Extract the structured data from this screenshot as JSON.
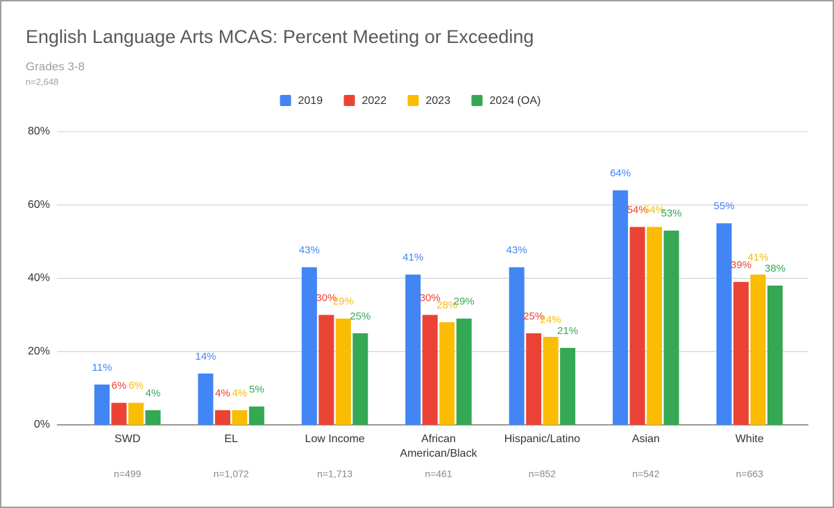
{
  "chart_data": {
    "type": "bar",
    "title": "English Language Arts MCAS: Percent Meeting or Exceeding",
    "subtitle": "Grades 3-8",
    "note": "n=2,648",
    "categories": [
      "SWD",
      "EL",
      "Low Income",
      "African American/Black",
      "Hispanic/Latino",
      "Asian",
      "White"
    ],
    "category_notes": [
      "n=499",
      "n=1,072",
      "n=1,713",
      "n=461",
      "n=852",
      "n=542",
      "n=663"
    ],
    "series": [
      {
        "name": "2019",
        "color": "#4285f4",
        "values": [
          11,
          14,
          43,
          41,
          43,
          64,
          55
        ],
        "value_labels": [
          "11%",
          "14%",
          "43%",
          "41%",
          "43%",
          "64%",
          "55%"
        ]
      },
      {
        "name": "2022",
        "color": "#ea4335",
        "values": [
          6,
          4,
          30,
          30,
          25,
          54,
          39
        ],
        "value_labels": [
          "6%",
          "4%",
          "30%",
          "30%",
          "25%",
          "54%",
          "39%"
        ]
      },
      {
        "name": "2023",
        "color": "#fbbc04",
        "values": [
          6,
          4,
          29,
          28,
          24,
          54,
          41
        ],
        "value_labels": [
          "6%",
          "4%",
          "29%",
          "28%",
          "24%",
          "54%",
          "41%"
        ]
      },
      {
        "name": "2024 (OA)",
        "color": "#34a853",
        "values": [
          4,
          5,
          25,
          29,
          21,
          53,
          38
        ],
        "value_labels": [
          "4%",
          "5%",
          "25%",
          "29%",
          "21%",
          "53%",
          "38%"
        ]
      }
    ],
    "ylim": [
      0,
      80
    ],
    "yticks": [
      {
        "value": 0,
        "label": "0%"
      },
      {
        "value": 20,
        "label": "20%"
      },
      {
        "value": 40,
        "label": "40%"
      },
      {
        "value": 60,
        "label": "60%"
      },
      {
        "value": 80,
        "label": "80%"
      }
    ],
    "grid": true,
    "legend": "top"
  }
}
